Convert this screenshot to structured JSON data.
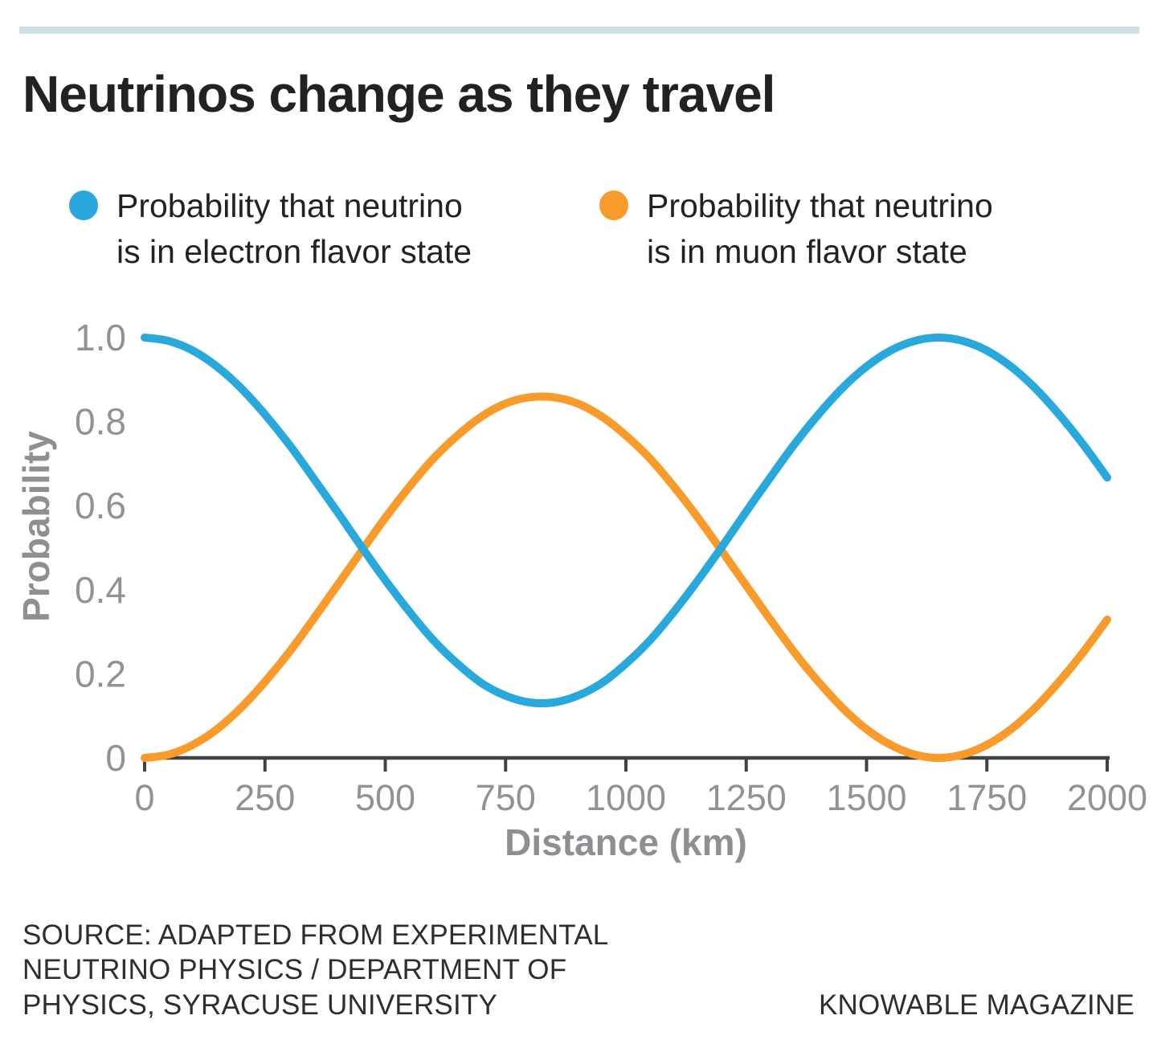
{
  "title": "Neutrinos change as they travel",
  "legend": {
    "items": [
      {
        "label_line1": "Probability that neutrino",
        "label_line2": "is in electron flavor state",
        "color": "#29A9DB"
      },
      {
        "label_line1": "Probability that neutrino",
        "label_line2": "is in muon flavor state",
        "color": "#F89B2B"
      }
    ]
  },
  "chart_data": {
    "type": "line",
    "title": "",
    "xlabel": "Distance (km)",
    "ylabel": "Probability",
    "xlim": [
      0,
      2000
    ],
    "ylim": [
      0,
      1.0
    ],
    "grid": false,
    "legend_position": "top",
    "x_ticks": [
      0,
      250,
      500,
      750,
      1000,
      1250,
      1500,
      1750,
      2000
    ],
    "y_ticks": [
      0,
      0.2,
      0.4,
      0.6,
      0.8,
      1.0
    ],
    "y_tick_labels": [
      "0",
      "0.2",
      "0.4",
      "0.6",
      "0.8",
      "1.0"
    ],
    "x_km": [
      0,
      50,
      100,
      150,
      200,
      250,
      300,
      350,
      400,
      450,
      500,
      550,
      600,
      650,
      700,
      750,
      800,
      850,
      900,
      950,
      1000,
      1050,
      1100,
      1150,
      1200,
      1250,
      1300,
      1350,
      1400,
      1450,
      1500,
      1550,
      1600,
      1650,
      1700,
      1750,
      1800,
      1850,
      1900,
      1950,
      2000
    ],
    "series": [
      {
        "name": "Probability that neutrino is in muon flavor state",
        "color": "#F89B2B",
        "values": [
          0.0,
          0.008,
          0.031,
          0.068,
          0.119,
          0.181,
          0.251,
          0.329,
          0.41,
          0.491,
          0.571,
          0.645,
          0.712,
          0.767,
          0.812,
          0.843,
          0.858,
          0.858,
          0.843,
          0.812,
          0.767,
          0.712,
          0.645,
          0.571,
          0.491,
          0.41,
          0.329,
          0.251,
          0.181,
          0.119,
          0.068,
          0.031,
          0.008,
          0.0,
          0.008,
          0.031,
          0.068,
          0.119,
          0.181,
          0.251,
          0.329
        ]
      },
      {
        "name": "Probability that neutrino is in electron flavor state",
        "color": "#29A9DB",
        "values": [
          1.0,
          0.992,
          0.969,
          0.931,
          0.88,
          0.817,
          0.746,
          0.667,
          0.586,
          0.503,
          0.423,
          0.348,
          0.28,
          0.224,
          0.178,
          0.148,
          0.132,
          0.132,
          0.148,
          0.178,
          0.224,
          0.28,
          0.348,
          0.423,
          0.503,
          0.586,
          0.667,
          0.746,
          0.817,
          0.88,
          0.931,
          0.969,
          0.992,
          1.0,
          0.992,
          0.969,
          0.931,
          0.88,
          0.817,
          0.746,
          0.667
        ]
      }
    ]
  },
  "source": {
    "line1": "SOURCE: ADAPTED FROM EXPERIMENTAL",
    "line2": "NEUTRINO PHYSICS / DEPARTMENT OF",
    "line3": "PHYSICS, SYRACUSE UNIVERSITY"
  },
  "credit": "KNOWABLE MAGAZINE",
  "colors": {
    "background": "#FFFFFF",
    "accent_bar": "#CCE0E5",
    "title_text": "#242122",
    "legend_text": "#242122",
    "axis_text": "#909295",
    "axis_title_text": "#8D8F92",
    "axis_line": "#414042",
    "source_text": "#2E2E30",
    "electron_blue": "#29A9DB",
    "muon_orange": "#F89B2B"
  }
}
